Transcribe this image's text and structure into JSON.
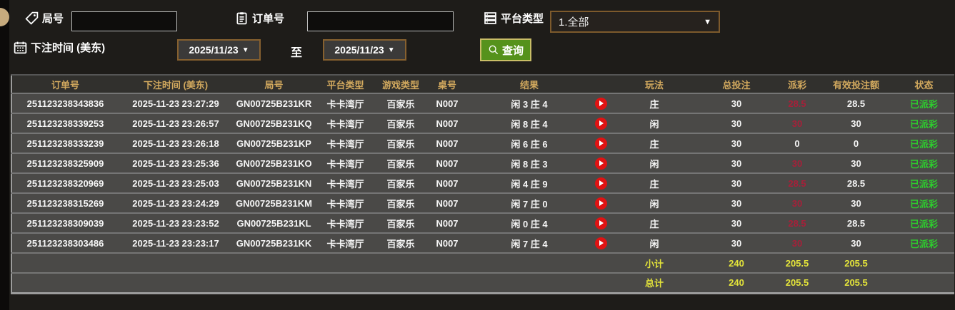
{
  "filters": {
    "round": {
      "label": "局号",
      "value": ""
    },
    "order": {
      "label": "订单号",
      "value": ""
    },
    "platform": {
      "label": "平台类型",
      "selected": "1.全部"
    },
    "bet_time": {
      "label": "下注时间 (美东)",
      "from": "2025/11/23",
      "to_label": "至",
      "to": "2025/11/23"
    },
    "search_button": "查询"
  },
  "table": {
    "headers": [
      "订单号",
      "下注时间 (美东)",
      "局号",
      "平台类型",
      "游戏类型",
      "桌号",
      "结果",
      "",
      "玩法",
      "总投注",
      "派彩",
      "有效投注额",
      "状态"
    ],
    "rows": [
      {
        "order_no": "251123238343836",
        "bet_time": "2025-11-23 23:27:29",
        "round_no": "GN00725B231KR",
        "platform": "卡卡湾厅",
        "game_type": "百家乐",
        "table_no": "N007",
        "result": "闲 3 庄 4",
        "play": "庄",
        "total_bet": "30",
        "payout": "28.5",
        "payout_red": true,
        "valid_bet": "28.5",
        "status": "已派彩"
      },
      {
        "order_no": "251123238339253",
        "bet_time": "2025-11-23 23:26:57",
        "round_no": "GN00725B231KQ",
        "platform": "卡卡湾厅",
        "game_type": "百家乐",
        "table_no": "N007",
        "result": "闲 8 庄 4",
        "play": "闲",
        "total_bet": "30",
        "payout": "30",
        "payout_red": true,
        "valid_bet": "30",
        "status": "已派彩"
      },
      {
        "order_no": "251123238333239",
        "bet_time": "2025-11-23 23:26:18",
        "round_no": "GN00725B231KP",
        "platform": "卡卡湾厅",
        "game_type": "百家乐",
        "table_no": "N007",
        "result": "闲 6 庄 6",
        "play": "庄",
        "total_bet": "30",
        "payout": "0",
        "payout_red": false,
        "valid_bet": "0",
        "status": "已派彩"
      },
      {
        "order_no": "251123238325909",
        "bet_time": "2025-11-23 23:25:36",
        "round_no": "GN00725B231KO",
        "platform": "卡卡湾厅",
        "game_type": "百家乐",
        "table_no": "N007",
        "result": "闲 8 庄 3",
        "play": "闲",
        "total_bet": "30",
        "payout": "30",
        "payout_red": true,
        "valid_bet": "30",
        "status": "已派彩"
      },
      {
        "order_no": "251123238320969",
        "bet_time": "2025-11-23 23:25:03",
        "round_no": "GN00725B231KN",
        "platform": "卡卡湾厅",
        "game_type": "百家乐",
        "table_no": "N007",
        "result": "闲 4 庄 9",
        "play": "庄",
        "total_bet": "30",
        "payout": "28.5",
        "payout_red": true,
        "valid_bet": "28.5",
        "status": "已派彩"
      },
      {
        "order_no": "251123238315269",
        "bet_time": "2025-11-23 23:24:29",
        "round_no": "GN00725B231KM",
        "platform": "卡卡湾厅",
        "game_type": "百家乐",
        "table_no": "N007",
        "result": "闲 7 庄 0",
        "play": "闲",
        "total_bet": "30",
        "payout": "30",
        "payout_red": true,
        "valid_bet": "30",
        "status": "已派彩"
      },
      {
        "order_no": "251123238309039",
        "bet_time": "2025-11-23 23:23:52",
        "round_no": "GN00725B231KL",
        "platform": "卡卡湾厅",
        "game_type": "百家乐",
        "table_no": "N007",
        "result": "闲 0 庄 4",
        "play": "庄",
        "total_bet": "30",
        "payout": "28.5",
        "payout_red": true,
        "valid_bet": "28.5",
        "status": "已派彩"
      },
      {
        "order_no": "251123238303486",
        "bet_time": "2025-11-23 23:23:17",
        "round_no": "GN00725B231KK",
        "platform": "卡卡湾厅",
        "game_type": "百家乐",
        "table_no": "N007",
        "result": "闲 7 庄 4",
        "play": "闲",
        "total_bet": "30",
        "payout": "30",
        "payout_red": true,
        "valid_bet": "30",
        "status": "已派彩"
      }
    ],
    "summary_rows": [
      {
        "label": "小计",
        "total_bet": "240",
        "payout": "205.5",
        "valid_bet": "205.5"
      },
      {
        "label": "总计",
        "total_bet": "240",
        "payout": "205.5",
        "valid_bet": "205.5"
      }
    ]
  },
  "colors": {
    "header_gold": "#d2a95e",
    "payout_red": "#a62039",
    "status_green": "#2ecc2e",
    "summary_yellow": "#e4e43a",
    "search_button_green": "#55921c",
    "row_bg": "#4a4947"
  }
}
